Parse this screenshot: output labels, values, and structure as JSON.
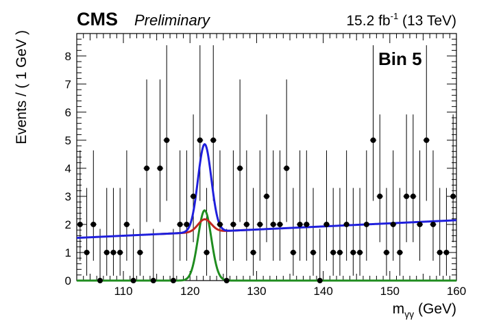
{
  "header": {
    "experiment": "CMS",
    "status": "Preliminary",
    "lumi_value": "15.2 fb",
    "lumi_exp": "-1",
    "energy": " (13 TeV)"
  },
  "colors": {
    "total_fit": "#1f1fdc",
    "background": "#c0261f",
    "signal": "#1f8c1f",
    "data": "#000000"
  },
  "chart_data": {
    "type": "scatter",
    "title": "",
    "bin_label": "Bin 5",
    "xlabel": "m",
    "xlabel_sub": "γγ",
    "xlabel_unit": " (GeV)",
    "ylabel": "Events / ( 1 GeV )",
    "xlim": [
      103,
      160
    ],
    "ylim": [
      0,
      8.8
    ],
    "xticks": [
      110,
      120,
      130,
      140,
      150,
      160
    ],
    "yticks": [
      0,
      1,
      2,
      3,
      4,
      5,
      6,
      7,
      8
    ],
    "grid": false,
    "data_counts": [
      2,
      1,
      2,
      0,
      1,
      1,
      1,
      2,
      0,
      1,
      4,
      0,
      4,
      5,
      0,
      2,
      2,
      3,
      5,
      1,
      5,
      2,
      0,
      2,
      4,
      2,
      1,
      2,
      3,
      2,
      2,
      4,
      1,
      2,
      2,
      1,
      0,
      2,
      1,
      1,
      2,
      1,
      1,
      2,
      5,
      3,
      1,
      2,
      1,
      3,
      3,
      2,
      5,
      2,
      1,
      1,
      3
    ],
    "data_x_start": 103.5,
    "data_x_step": 1,
    "background_model": {
      "x_start": 103,
      "x_end": 160,
      "y_start": 1.52,
      "y_end": 2.15
    },
    "signal_model": {
      "mean": 122.2,
      "sigma": 1.0,
      "peak": 2.5,
      "x_end": 160
    },
    "series": [
      {
        "name": "",
        "style": "points with error bars"
      },
      {
        "name": "",
        "style": "blue line"
      },
      {
        "name": "",
        "style": "red line"
      },
      {
        "name": "",
        "style": "green line"
      }
    ]
  }
}
